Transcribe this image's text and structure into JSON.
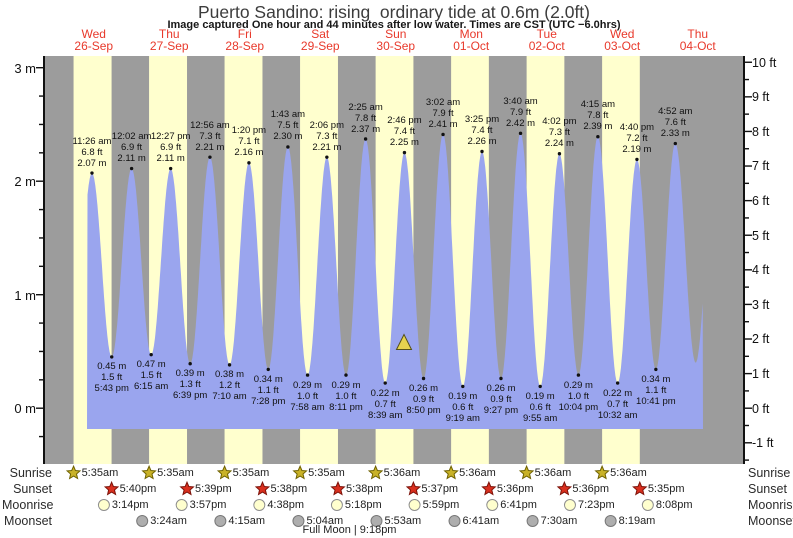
{
  "title": "Puerto Sandino: rising  ordinary tide at 0.6m (2.0ft)",
  "subtitle": "Image captured One hour and 44 minutes after low water. Times are CST (UTC −6.0hrs)",
  "legend": {
    "sunrise_label": "Sunrise",
    "sunset_label": "Sunset",
    "moonrise_label": "Moonrise",
    "moonset_label": "Moonset",
    "full_moon_label": "Full Moon | 9:18pm"
  },
  "colors": {
    "night_band": "#9c9c9c",
    "day_band": "#ffffce",
    "tide_fill": "#9aa5ee",
    "date_red": "#e8392b",
    "sunrise_star": "#c9b227",
    "sunset_star": "#d92f1e",
    "moonrise_fill": "#ffffce",
    "moonset_fill": "#aeaeae",
    "marker_yellow": "#e6d34f"
  },
  "chart_data": {
    "type": "area",
    "title": "Puerto Sandino: rising  ordinary tide at 0.6m (2.0ft)",
    "y_axis_left_ticks": [
      {
        "label": "3 m",
        "value": 3
      },
      {
        "label": "2 m",
        "value": 2
      },
      {
        "label": "1 m",
        "value": 1
      },
      {
        "label": "0 m",
        "value": 0
      }
    ],
    "y_axis_right_ticks": [
      {
        "label": "10 ft",
        "value": 10
      },
      {
        "label": "9 ft",
        "value": 9
      },
      {
        "label": "8 ft",
        "value": 8
      },
      {
        "label": "7 ft",
        "value": 7
      },
      {
        "label": "6 ft",
        "value": 6
      },
      {
        "label": "5 ft",
        "value": 5
      },
      {
        "label": "4 ft",
        "value": 4
      },
      {
        "label": "3 ft",
        "value": 3
      },
      {
        "label": "2 ft",
        "value": 2
      },
      {
        "label": "1 ft",
        "value": 1
      },
      {
        "label": "0 ft",
        "value": 0
      },
      {
        "label": "-1 ft",
        "value": -1
      }
    ],
    "days": [
      {
        "name": "Wed",
        "date": "26-Sep"
      },
      {
        "name": "Thu",
        "date": "27-Sep"
      },
      {
        "name": "Fri",
        "date": "28-Sep"
      },
      {
        "name": "Sat",
        "date": "29-Sep"
      },
      {
        "name": "Sun",
        "date": "30-Sep"
      },
      {
        "name": "Mon",
        "date": "01-Oct"
      },
      {
        "name": "Tue",
        "date": "02-Oct"
      },
      {
        "name": "Wed",
        "date": "03-Oct"
      },
      {
        "name": "Thu",
        "date": "04-Oct"
      }
    ],
    "tide_events": [
      {
        "type": "high",
        "day": 0,
        "time": "11:26 am",
        "ft": "6.8 ft",
        "m": "2.07 m"
      },
      {
        "type": "low",
        "day": 0,
        "time": "5:43 pm",
        "ft": "1.5 ft",
        "m": "0.45 m"
      },
      {
        "type": "high",
        "day": 1,
        "time": "12:02 am",
        "ft": "6.9 ft",
        "m": "2.11 m"
      },
      {
        "type": "low",
        "day": 1,
        "time": "6:15 am",
        "ft": "1.5 ft",
        "m": "0.47 m"
      },
      {
        "type": "high",
        "day": 1,
        "time": "12:27 pm",
        "ft": "6.9 ft",
        "m": "2.11 m"
      },
      {
        "type": "low",
        "day": 1,
        "time": "6:39 pm",
        "ft": "1.3 ft",
        "m": "0.39 m"
      },
      {
        "type": "high",
        "day": 2,
        "time": "12:56 am",
        "ft": "7.3 ft",
        "m": "2.21 m"
      },
      {
        "type": "low",
        "day": 2,
        "time": "7:10 am",
        "ft": "1.2 ft",
        "m": "0.38 m"
      },
      {
        "type": "high",
        "day": 2,
        "time": "1:20 pm",
        "ft": "7.1 ft",
        "m": "2.16 m"
      },
      {
        "type": "low",
        "day": 2,
        "time": "7:28 pm",
        "ft": "1.1 ft",
        "m": "0.34 m"
      },
      {
        "type": "high",
        "day": 3,
        "time": "1:43 am",
        "ft": "7.5 ft",
        "m": "2.30 m"
      },
      {
        "type": "low",
        "day": 3,
        "time": "7:58 am",
        "ft": "1.0 ft",
        "m": "0.29 m"
      },
      {
        "type": "high",
        "day": 3,
        "time": "2:06 pm",
        "ft": "7.3 ft",
        "m": "2.21 m"
      },
      {
        "type": "low",
        "day": 3,
        "time": "8:11 pm",
        "ft": "1.0 ft",
        "m": "0.29 m"
      },
      {
        "type": "high",
        "day": 4,
        "time": "2:25 am",
        "ft": "7.8 ft",
        "m": "2.37 m"
      },
      {
        "type": "low",
        "day": 4,
        "time": "8:39 am",
        "ft": "0.7 ft",
        "m": "0.22 m"
      },
      {
        "type": "high",
        "day": 4,
        "time": "2:46 pm",
        "ft": "7.4 ft",
        "m": "2.25 m"
      },
      {
        "type": "low",
        "day": 4,
        "time": "8:50 pm",
        "ft": "0.9 ft",
        "m": "0.26 m"
      },
      {
        "type": "high",
        "day": 5,
        "time": "3:02 am",
        "ft": "7.9 ft",
        "m": "2.41 m"
      },
      {
        "type": "low",
        "day": 5,
        "time": "9:19 am",
        "ft": "0.6 ft",
        "m": "0.19 m"
      },
      {
        "type": "high",
        "day": 5,
        "time": "3:25 pm",
        "ft": "7.4 ft",
        "m": "2.26 m"
      },
      {
        "type": "low",
        "day": 5,
        "time": "9:27 pm",
        "ft": "0.9 ft",
        "m": "0.26 m"
      },
      {
        "type": "high",
        "day": 6,
        "time": "3:40 am",
        "ft": "7.9 ft",
        "m": "2.42 m"
      },
      {
        "type": "low",
        "day": 6,
        "time": "9:55 am",
        "ft": "0.6 ft",
        "m": "0.19 m"
      },
      {
        "type": "high",
        "day": 6,
        "time": "4:02 pm",
        "ft": "7.3 ft",
        "m": "2.24 m"
      },
      {
        "type": "low",
        "day": 6,
        "time": "10:04 pm",
        "ft": "1.0 ft",
        "m": "0.29 m"
      },
      {
        "type": "high",
        "day": 7,
        "time": "4:15 am",
        "ft": "7.8 ft",
        "m": "2.39 m"
      },
      {
        "type": "low",
        "day": 7,
        "time": "10:32 am",
        "ft": "0.7 ft",
        "m": "0.22 m"
      },
      {
        "type": "high",
        "day": 7,
        "time": "4:40 pm",
        "ft": "7.2 ft",
        "m": "2.19 m"
      },
      {
        "type": "low",
        "day": 7,
        "time": "10:41 pm",
        "ft": "1.1 ft",
        "m": "0.34 m"
      },
      {
        "type": "high",
        "day": 8,
        "time": "4:52 am",
        "ft": "7.6 ft",
        "m": "2.33 m"
      }
    ],
    "sun_moon": {
      "sunrise": [
        {
          "day": 0,
          "time": "5:35am"
        },
        {
          "day": 1,
          "time": "5:35am"
        },
        {
          "day": 2,
          "time": "5:35am"
        },
        {
          "day": 3,
          "time": "5:35am"
        },
        {
          "day": 4,
          "time": "5:36am"
        },
        {
          "day": 5,
          "time": "5:36am"
        },
        {
          "day": 6,
          "time": "5:36am"
        },
        {
          "day": 7,
          "time": "5:36am"
        }
      ],
      "sunset": [
        {
          "day": 0,
          "time": "5:40pm"
        },
        {
          "day": 1,
          "time": "5:39pm"
        },
        {
          "day": 2,
          "time": "5:38pm"
        },
        {
          "day": 3,
          "time": "5:38pm"
        },
        {
          "day": 4,
          "time": "5:37pm"
        },
        {
          "day": 5,
          "time": "5:36pm"
        },
        {
          "day": 6,
          "time": "5:36pm"
        },
        {
          "day": 7,
          "time": "5:35pm"
        }
      ],
      "moonrise": [
        {
          "day": 0,
          "time": "3:14pm"
        },
        {
          "day": 1,
          "time": "3:57pm"
        },
        {
          "day": 2,
          "time": "4:38pm"
        },
        {
          "day": 3,
          "time": "5:18pm"
        },
        {
          "day": 4,
          "time": "5:59pm"
        },
        {
          "day": 5,
          "time": "6:41pm"
        },
        {
          "day": 6,
          "time": "7:23pm"
        },
        {
          "day": 7,
          "time": "8:08pm"
        }
      ],
      "moonset": [
        {
          "day": 1,
          "time": "3:24am"
        },
        {
          "day": 2,
          "time": "4:15am"
        },
        {
          "day": 3,
          "time": "5:04am"
        },
        {
          "day": 4,
          "time": "5:53am"
        },
        {
          "day": 5,
          "time": "6:41am"
        },
        {
          "day": 6,
          "time": "7:30am"
        },
        {
          "day": 7,
          "time": "8:19am"
        }
      ],
      "full_moon": {
        "day": 3,
        "time": "9:18pm"
      }
    }
  }
}
